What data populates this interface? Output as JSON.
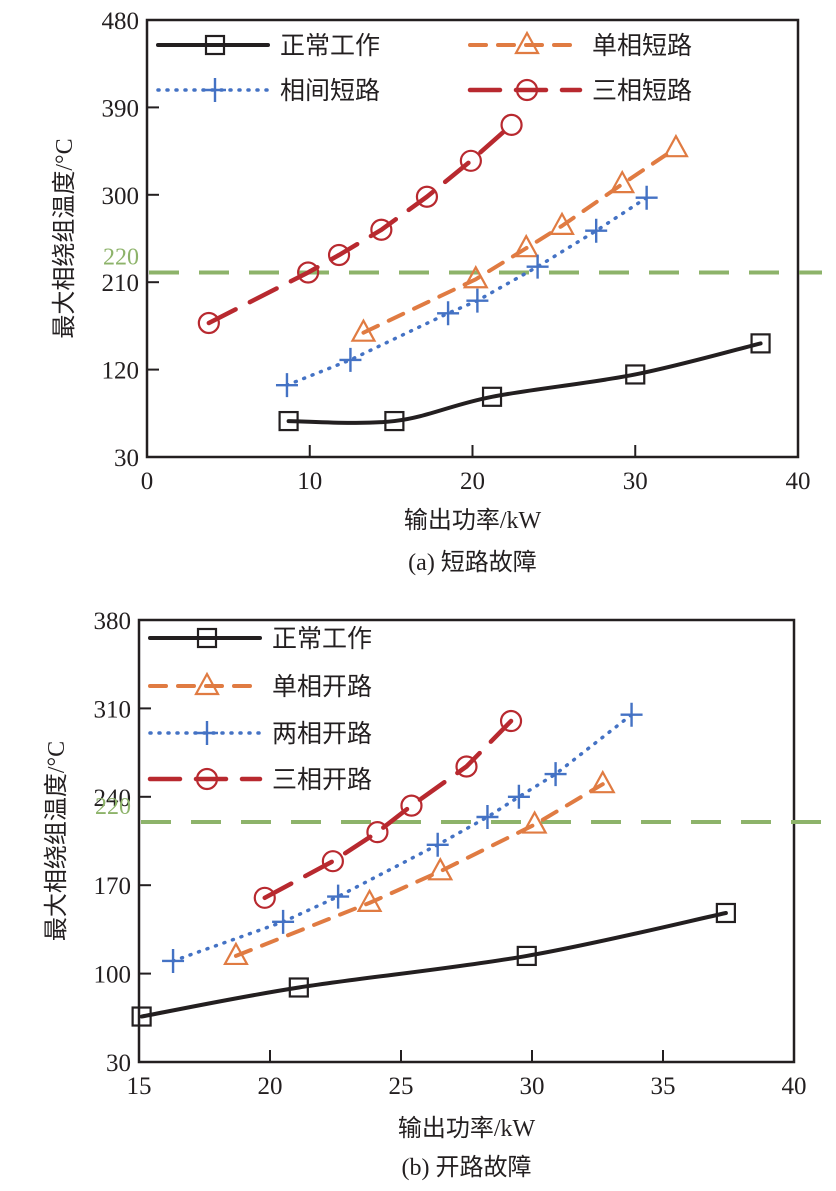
{
  "chart_data": [
    {
      "type": "line",
      "caption": "(a) 短路故障",
      "xlabel": "输出功率/kW",
      "ylabel": "最大相绕组温度/°C",
      "xlim": [
        0,
        40
      ],
      "ylim": [
        30,
        480
      ],
      "xticks": [
        0,
        10,
        20,
        30,
        40
      ],
      "yticks": [
        30,
        120,
        210,
        300,
        390,
        480
      ],
      "grid": false,
      "legend_position": "top",
      "legend_columns": 2,
      "reference_line": {
        "y": 220,
        "label": "220",
        "color": "#8DB36A",
        "style": "dashed"
      },
      "series": [
        {
          "name": "正常工作",
          "color": "#231F20",
          "style": "solid",
          "marker": "square",
          "smooth": true,
          "x": [
            8.7,
            15.2,
            21.2,
            30.0,
            37.7
          ],
          "y": [
            67,
            67,
            92,
            115,
            147
          ]
        },
        {
          "name": "单相短路",
          "color": "#E07B42",
          "style": "dashed",
          "marker": "triangle",
          "smooth": false,
          "x": [
            13.3,
            20.2,
            23.3,
            25.5,
            29.2,
            32.5
          ],
          "y": [
            158,
            213,
            245,
            268,
            311,
            348
          ]
        },
        {
          "name": "相间短路",
          "color": "#4472C4",
          "style": "dotted",
          "marker": "plus",
          "smooth": false,
          "x": [
            8.6,
            12.5,
            18.5,
            20.3,
            24.0,
            27.6,
            30.7
          ],
          "y": [
            104,
            130,
            178,
            191,
            226,
            263,
            297
          ]
        },
        {
          "name": "三相短路",
          "color": "#B8292F",
          "style": "longdash",
          "marker": "circle",
          "smooth": false,
          "x": [
            3.8,
            9.9,
            11.8,
            14.4,
            17.2,
            19.9,
            22.4
          ],
          "y": [
            168,
            220,
            238,
            264,
            298,
            335,
            372
          ]
        }
      ]
    },
    {
      "type": "line",
      "caption": "(b) 开路故障",
      "xlabel": "输出功率/kW",
      "ylabel": "最大相绕组温度/°C",
      "xlim": [
        15,
        40
      ],
      "ylim": [
        30,
        380
      ],
      "xticks": [
        15,
        20,
        25,
        30,
        35,
        40
      ],
      "yticks": [
        30,
        100,
        170,
        240,
        310,
        380
      ],
      "grid": false,
      "legend_position": "top-left",
      "legend_columns": 1,
      "reference_line": {
        "y": 220,
        "label": "220",
        "color": "#8DB36A",
        "style": "dashed"
      },
      "series": [
        {
          "name": "正常工作",
          "color": "#231F20",
          "style": "solid",
          "marker": "square",
          "smooth": true,
          "x": [
            15.1,
            21.1,
            29.8,
            37.4
          ],
          "y": [
            66,
            89,
            114,
            148
          ]
        },
        {
          "name": "单相开路",
          "color": "#E07B42",
          "style": "dashed",
          "marker": "triangle",
          "smooth": false,
          "x": [
            18.7,
            23.8,
            26.5,
            30.1,
            32.7
          ],
          "y": [
            114,
            156,
            181,
            218,
            250
          ]
        },
        {
          "name": "两相开路",
          "color": "#4472C4",
          "style": "dotted",
          "marker": "plus",
          "smooth": false,
          "x": [
            16.3,
            20.5,
            22.6,
            26.4,
            28.3,
            29.5,
            30.9,
            33.8
          ],
          "y": [
            110,
            141,
            161,
            202,
            224,
            240,
            258,
            305
          ]
        },
        {
          "name": "三相开路",
          "color": "#B8292F",
          "style": "longdash",
          "marker": "circle",
          "smooth": false,
          "x": [
            19.8,
            22.4,
            24.1,
            25.4,
            27.5,
            29.2
          ],
          "y": [
            160,
            189,
            212,
            233,
            264,
            300
          ]
        }
      ]
    }
  ]
}
